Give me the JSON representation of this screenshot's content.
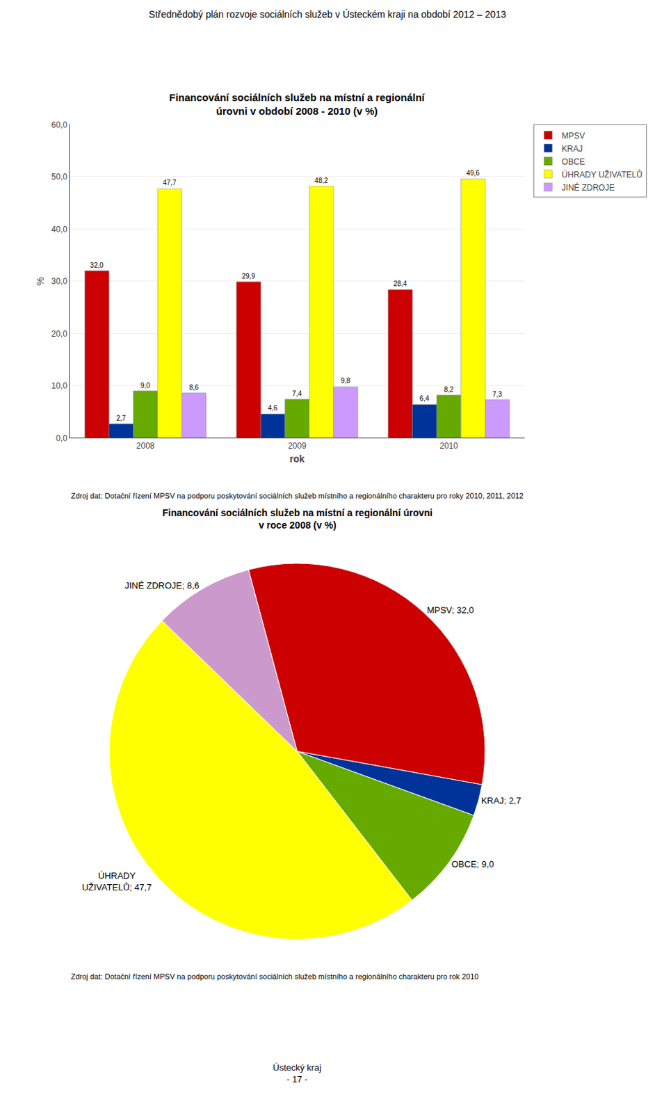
{
  "title": "Střednědobý plán rozvoje sociálních služeb v Ústeckém kraji na období 2012 – 2013",
  "annotations": [
    "Ústecký kraj\n- 17 -"
  ],
  "chart_data": [
    {
      "type": "bar",
      "title": "Financování sociálních služeb na místní a regionální\núrovni v období 2008 - 2010 (v %)",
      "x_label": "rok",
      "y_label": "%",
      "categories": [
        "2008",
        "2009",
        "2010"
      ],
      "series": [
        {
          "name": "MPSV",
          "color": "#CC0000",
          "values": [
            32.0,
            29.9,
            28.4
          ],
          "value_labels": [
            "32,0",
            "29,9",
            "28,4"
          ]
        },
        {
          "name": "KRAJ",
          "color": "#003399",
          "values": [
            2.7,
            4.6,
            6.4
          ],
          "value_labels": [
            "2,7",
            "4,6",
            "6,4"
          ]
        },
        {
          "name": "OBCE",
          "color": "#66AA00",
          "values": [
            9.0,
            7.4,
            8.2
          ],
          "value_labels": [
            "9,0",
            "7,4",
            "8,2"
          ]
        },
        {
          "name": "ÚHRADY UŽIVATELŮ",
          "color": "#FFFF00",
          "values": [
            47.7,
            48.2,
            49.6
          ],
          "value_labels": [
            "47,7",
            "48,2",
            "49,6"
          ]
        },
        {
          "name": "JINÉ ZDROJE",
          "color": "#CC99FF",
          "values": [
            8.6,
            9.8,
            7.3
          ],
          "value_labels": [
            "8,6",
            "9,8",
            "7,3"
          ]
        }
      ],
      "ylim": [
        0,
        60
      ],
      "yticks": [
        {
          "value": 0,
          "label": "0,0"
        },
        {
          "value": 10,
          "label": "10,0"
        },
        {
          "value": 20,
          "label": "20,0"
        },
        {
          "value": 30,
          "label": "30,0"
        },
        {
          "value": 40,
          "label": "40,0"
        },
        {
          "value": 50,
          "label": "50,0"
        },
        {
          "value": 60,
          "label": "60,0"
        }
      ],
      "grid": true,
      "legend": "right",
      "data_labels": true,
      "annotations": [
        "Zdroj dat: Dotační řízení MPSV na podporu poskytování sociálních služeb místního a regionálního charakteru pro roky 2010, 2011, 2012"
      ]
    },
    {
      "type": "pie",
      "title": "Financování sociálních služeb na místní a regionální úrovni\nv roce 2008 (v %)",
      "categories": [
        "MPSV",
        "KRAJ",
        "OBCE",
        "ÚHRADY UŽIVATELŮ",
        "JINÉ ZDROJE"
      ],
      "values": [
        32.0,
        2.7,
        9.0,
        47.7,
        8.6
      ],
      "value_labels": [
        "MPSV; 32,0",
        "KRAJ; 2,7",
        "OBCE; 9,0",
        "ÚHRADY\nUŽIVATELŮ; 47,7",
        "JINÉ ZDROJE; 8,6"
      ],
      "colors": [
        "#CC0000",
        "#003399",
        "#66AA00",
        "#FFFF00",
        "#CC99CC"
      ],
      "data_labels": true,
      "annotations": [
        "Zdroj dat: Dotační řízení MPSV na podporu poskytování sociálních služeb místního a regionálního charakteru pro rok 2010"
      ]
    }
  ]
}
